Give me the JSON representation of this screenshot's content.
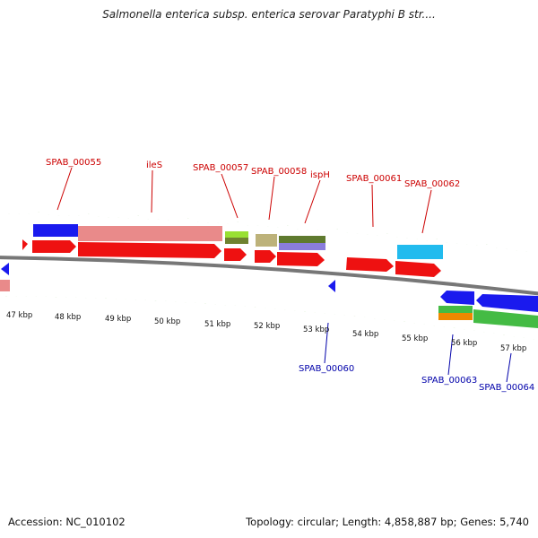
{
  "title": "Salmonella enterica subsp. enterica serovar Paratyphi B str....",
  "footer": {
    "accession": "Accession: NC_010102",
    "stats": "Topology: circular; Length: 4,858,887 bp; Genes: 5,740"
  },
  "colors": {
    "forward_label": "#cc0000",
    "reverse_label": "#0000aa",
    "tick": "#339900",
    "backbone": "#777777",
    "gene_red": "#ee1111",
    "gene_blue": "#0000ee",
    "gene_pink": "#e88888",
    "gene_cyan": "#22bbee",
    "gene_lime": "#88dd33",
    "gene_olive": "#778833",
    "gene_khaki": "#bbb077",
    "gene_darkolive": "#667733",
    "gene_lavender": "#8877dd",
    "gene_green": "#44bb44",
    "gene_orange": "#ee8800"
  },
  "kbp_scale": [
    "47 kbp",
    "48 kbp",
    "49 kbp",
    "50 kbp",
    "51 kbp",
    "52 kbp",
    "53 kbp",
    "54 kbp",
    "55 kbp",
    "56 kbp",
    "57 kbp"
  ],
  "forward_labels": [
    "SPAB_00055",
    "ileS",
    "SPAB_00057",
    "SPAB_00058",
    "ispH",
    "SPAB_00061",
    "SPAB_00062"
  ],
  "reverse_labels": [
    "SPAB_00060",
    "SPAB_00063",
    "SPAB_00064"
  ]
}
